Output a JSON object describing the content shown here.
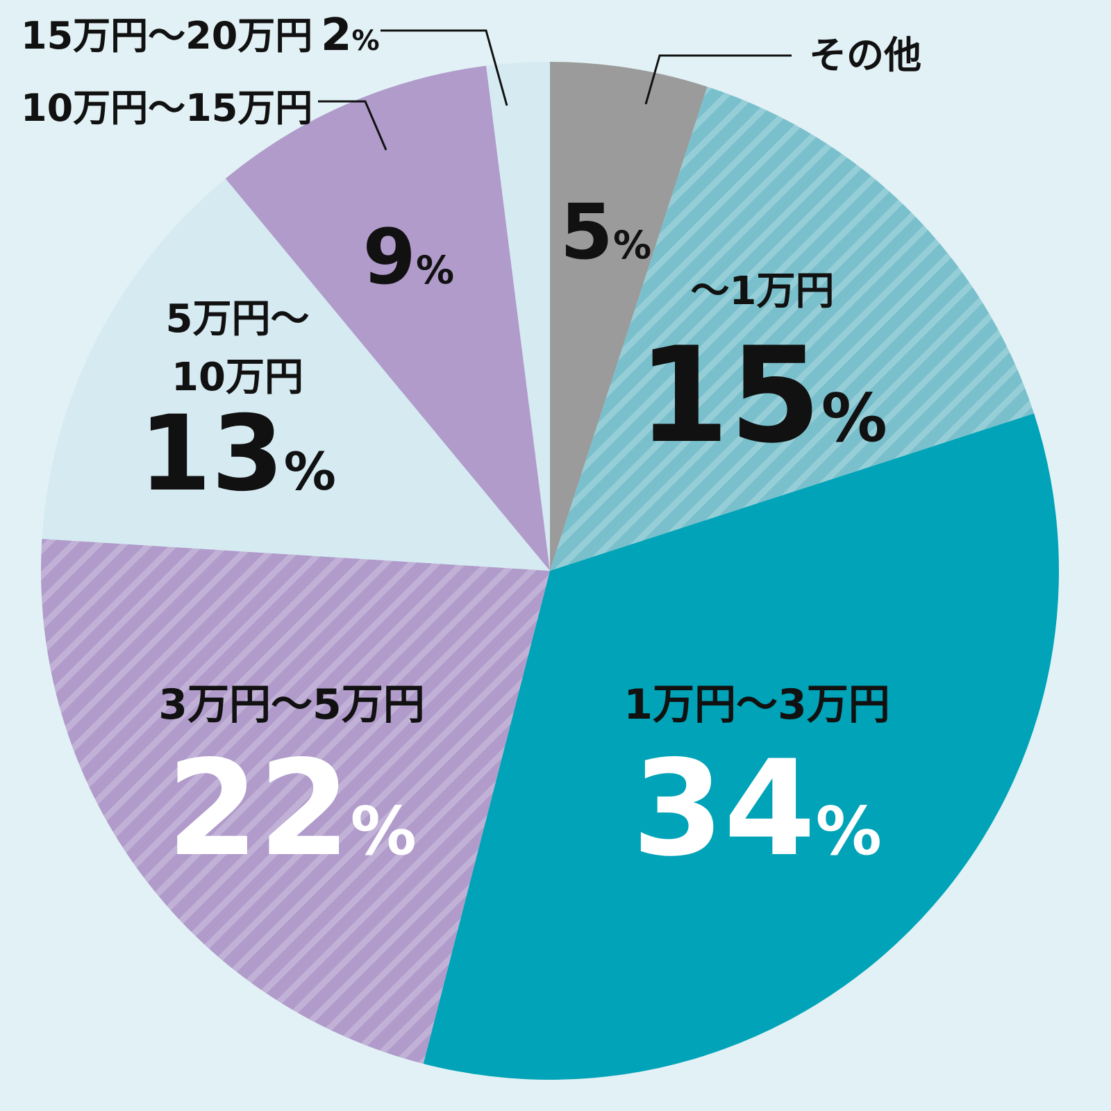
{
  "chart_data": {
    "type": "pie",
    "start": "top",
    "direction": "clockwise",
    "slices": [
      {
        "name": "その他",
        "value": 5,
        "label": "5",
        "unit": "%",
        "color": "#9b9b9b",
        "hatched": false,
        "text_color": "#111111"
      },
      {
        "name": "～1万円",
        "value": 15,
        "label": "15",
        "unit": "%",
        "color": "#79c0cc",
        "hatched": true,
        "text_color": "#111111"
      },
      {
        "name": "1万円～3万円",
        "value": 34,
        "label": "34",
        "unit": "%",
        "color": "#00a3b7",
        "hatched": false,
        "text_color": "#ffffff"
      },
      {
        "name": "3万円～5万円",
        "value": 22,
        "label": "22",
        "unit": "%",
        "color": "#b09bca",
        "hatched": true,
        "text_color": "#ffffff"
      },
      {
        "name": "5万円～10万円",
        "name_lines": [
          "5万円～",
          "10万円"
        ],
        "value": 13,
        "label": "13",
        "unit": "%",
        "color": "#d6eaf2",
        "hatched": false,
        "text_color": "#111111"
      },
      {
        "name": "10万円～15万円",
        "value": 9,
        "label": "9",
        "unit": "%",
        "color": "#b09bca",
        "hatched": false,
        "text_color": "#111111"
      },
      {
        "name": "15万円～20万円",
        "value": 2,
        "label": "2",
        "unit": "%",
        "color": "#d6eaf2",
        "hatched": false,
        "text_color": "#111111"
      }
    ]
  }
}
